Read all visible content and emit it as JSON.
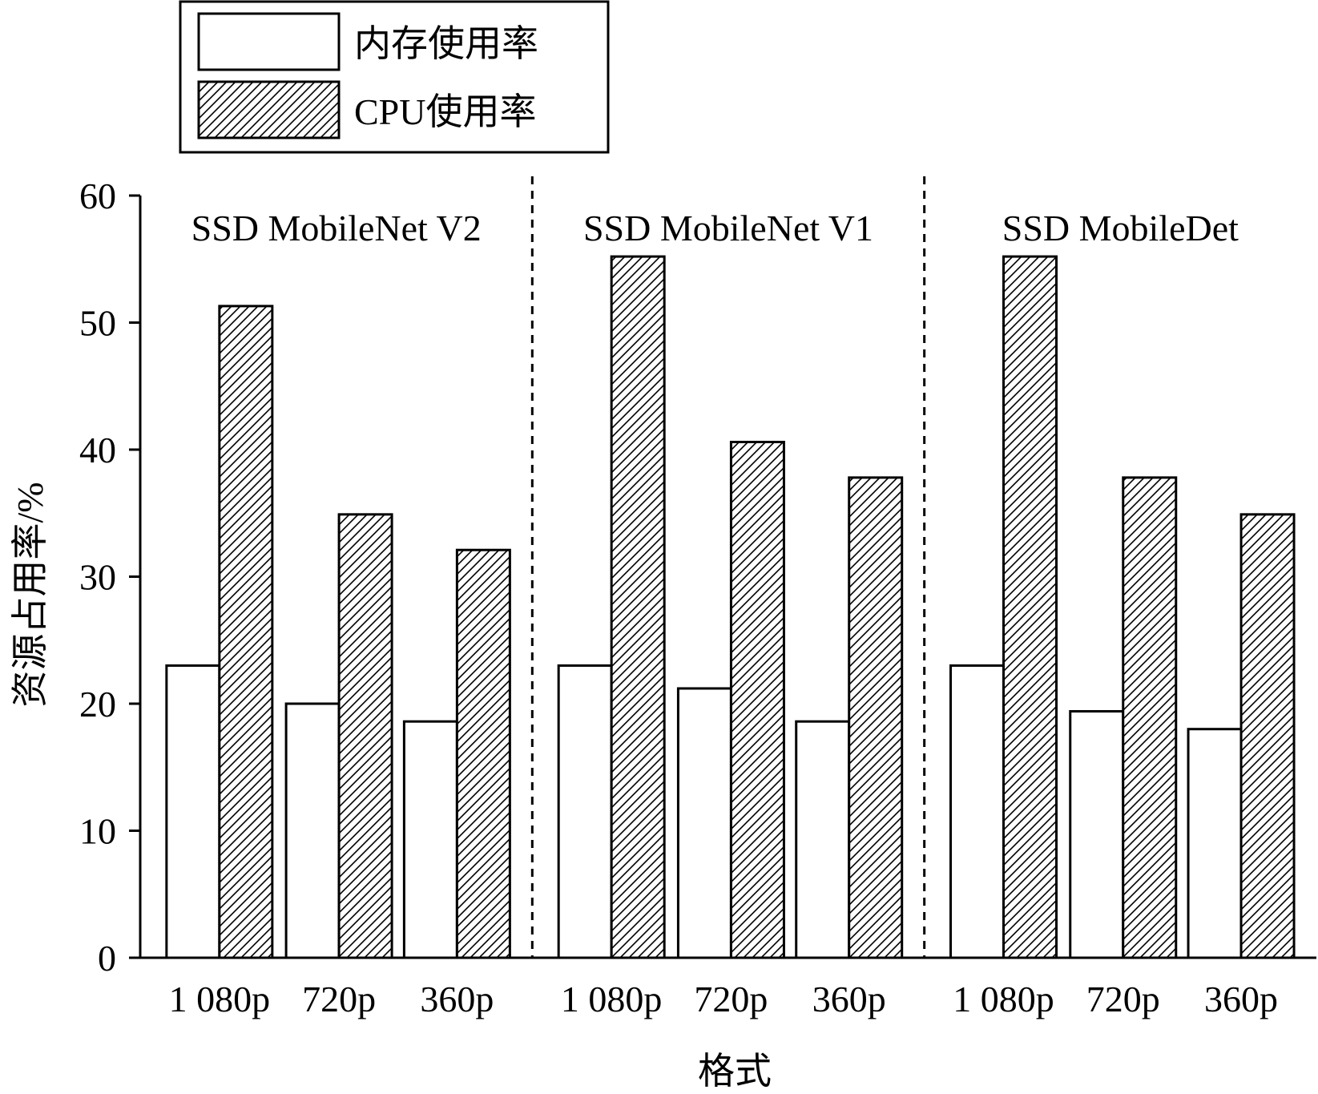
{
  "chart_data": {
    "type": "bar",
    "xlabel": "格式",
    "ylabel": "资源占用率/%",
    "ylim": [
      0,
      60
    ],
    "yticks": [
      0,
      10,
      20,
      30,
      40,
      50,
      60
    ],
    "legend_position": "top-left",
    "grid": false,
    "groups": [
      {
        "name": "SSD MobileNet V2",
        "categories": [
          "1 080p",
          "720p",
          "360p"
        ],
        "memory": [
          23.0,
          20.0,
          18.6
        ],
        "cpu": [
          51.3,
          34.9,
          32.1
        ]
      },
      {
        "name": "SSD MobileNet V1",
        "categories": [
          "1 080p",
          "720p",
          "360p"
        ],
        "memory": [
          23.0,
          21.2,
          18.6
        ],
        "cpu": [
          55.2,
          40.6,
          37.8
        ]
      },
      {
        "name": "SSD MobileDet",
        "categories": [
          "1 080p",
          "720p",
          "360p"
        ],
        "memory": [
          23.0,
          19.4,
          18.0
        ],
        "cpu": [
          55.2,
          37.8,
          34.9
        ]
      }
    ],
    "series": [
      {
        "name": "内存使用率",
        "key": "memory",
        "fill": "white"
      },
      {
        "name": "CPU使用率",
        "key": "cpu",
        "fill": "hatch"
      }
    ]
  },
  "colors": {
    "stroke": "#000000",
    "background": "#ffffff"
  }
}
